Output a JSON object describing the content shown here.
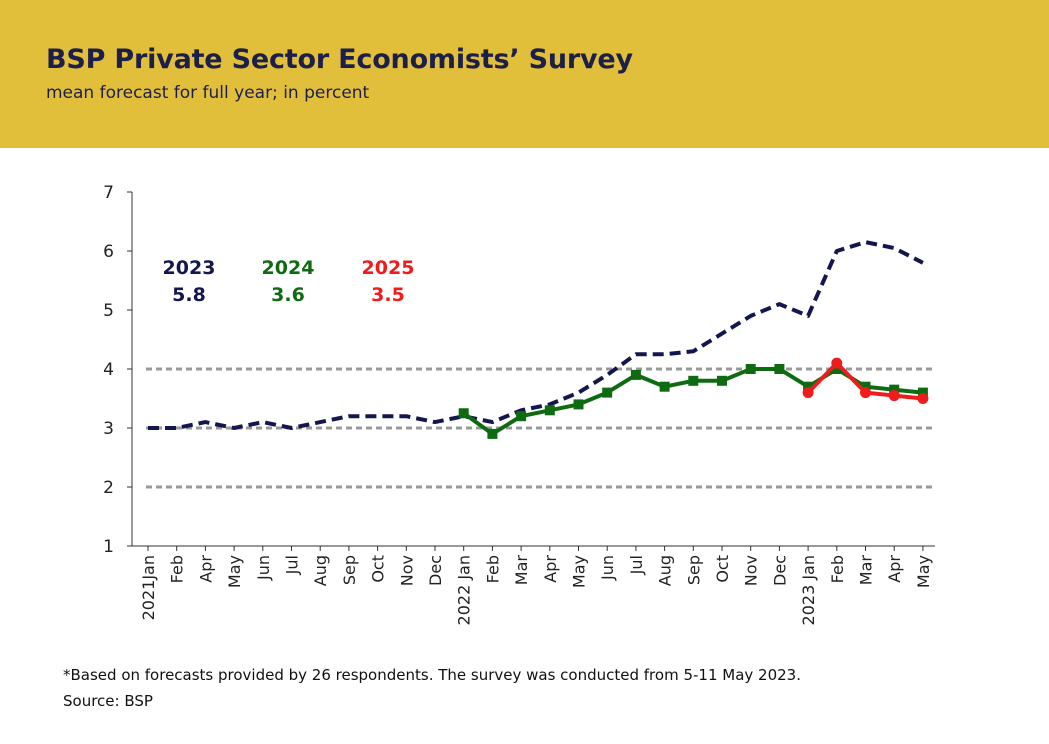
{
  "header": {
    "title": "BSP Private Sector Economists’ Survey",
    "subtitle": "mean forecast for full year; in percent"
  },
  "footer": {
    "note": "*Based on forecasts provided by 26 respondents. The survey was conducted from 5-11 May 2023.",
    "source": "Source: BSP"
  },
  "colors": {
    "header_bg": "#e2bf3a",
    "title_text": "#1c1f4a",
    "series_2023": "#14174d",
    "series_2024": "#0f6b12",
    "series_2025": "#ee1c1c",
    "grid": "#999999"
  },
  "chart_data": {
    "type": "line",
    "ylim": [
      1,
      7
    ],
    "yticks": [
      "1",
      "2",
      "3",
      "4",
      "5",
      "6",
      "7"
    ],
    "reference_lines": [
      2,
      3,
      4
    ],
    "categories": [
      "2021Jan",
      "Feb",
      "Apr",
      "May",
      "Jun",
      "Jul",
      "Aug",
      "Sep",
      "Oct",
      "Nov",
      "Dec",
      "2022 Jan",
      "Feb",
      "Mar",
      "Apr",
      "May",
      "Jun",
      "Jul",
      "Aug",
      "Sep",
      "Oct",
      "Nov",
      "Dec",
      "2023 Jan",
      "Feb",
      "Mar",
      "Apr",
      "May"
    ],
    "series": [
      {
        "name": "2023",
        "style": "dashed",
        "latest_label": "5.8",
        "values": [
          3.0,
          3.0,
          3.1,
          3.0,
          3.1,
          3.0,
          3.1,
          3.2,
          3.2,
          3.2,
          3.1,
          3.2,
          3.1,
          3.3,
          3.4,
          3.6,
          3.9,
          4.25,
          4.25,
          4.3,
          4.6,
          4.9,
          5.1,
          4.9,
          6.0,
          6.15,
          6.05,
          5.8
        ]
      },
      {
        "name": "2024",
        "style": "solid-square",
        "latest_label": "3.6",
        "values": [
          null,
          null,
          null,
          null,
          null,
          null,
          null,
          null,
          null,
          null,
          null,
          3.25,
          2.9,
          3.2,
          3.3,
          3.4,
          3.6,
          3.9,
          3.7,
          3.8,
          3.8,
          4.0,
          4.0,
          3.7,
          4.0,
          3.7,
          3.65,
          3.6
        ]
      },
      {
        "name": "2025",
        "style": "solid-circle",
        "latest_label": "3.5",
        "values": [
          null,
          null,
          null,
          null,
          null,
          null,
          null,
          null,
          null,
          null,
          null,
          null,
          null,
          null,
          null,
          null,
          null,
          null,
          null,
          null,
          null,
          null,
          null,
          3.6,
          4.1,
          3.6,
          3.55,
          3.5
        ]
      }
    ]
  }
}
